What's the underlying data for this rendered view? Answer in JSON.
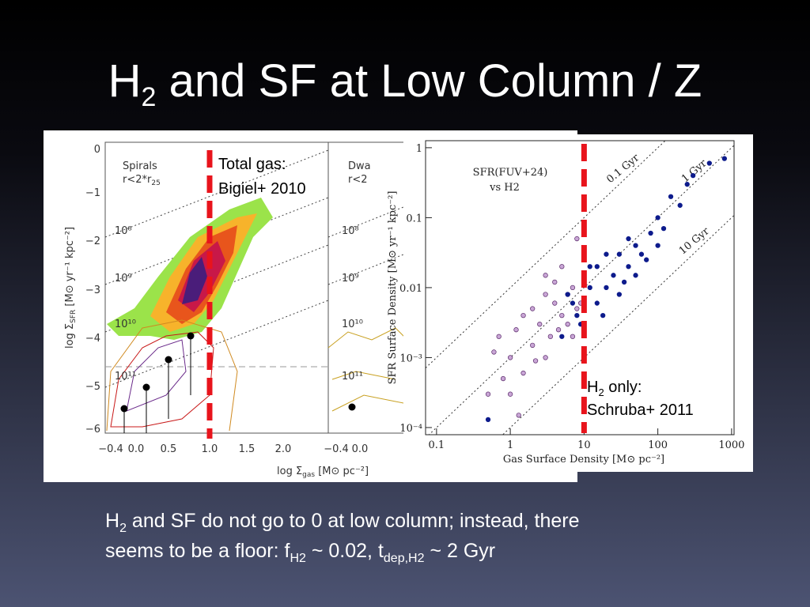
{
  "slide": {
    "title": {
      "base": "H",
      "sub": "2",
      "rest": " and SF at Low Column / Z"
    },
    "caption": {
      "line1": {
        "base": "H",
        "sub": "2",
        "rest": " and SF do not go to 0 at low column; instead, there"
      },
      "line2": {
        "a": "seems to be a floor: f",
        "sub1": "H2",
        "b": " ~ 0.02, t",
        "sub2": "dep,H2",
        "c": " ~ 2 Gyr"
      }
    }
  },
  "left_panel": {
    "panel1": {
      "name": "Spirals",
      "radius": "r<2*r",
      "radius_sub": "25"
    },
    "panel2": {
      "name": "Dwa",
      "radius": "r<2"
    },
    "yticks": [
      "0",
      "−1",
      "−2",
      "−3",
      "−4",
      "−5",
      "−6"
    ],
    "xticks": [
      "−0.4",
      "0.0",
      "0.5",
      "1.0",
      "1.5",
      "2.0"
    ],
    "xticks2": [
      "−0.4",
      "0.0"
    ],
    "contour_labels": [
      "10⁸",
      "10⁹",
      "10¹⁰",
      "10¹¹"
    ],
    "ylabel": {
      "a": "log Σ",
      "sub": "SFR",
      "b": " [M⊙ yr⁻¹ kpc⁻²]"
    },
    "xlabel": {
      "a": "log Σ",
      "sub": "gas",
      "b": " [M⊙ pc⁻²]"
    },
    "annotation": [
      "Total gas:",
      "Bigiel+ 2010"
    ]
  },
  "chart_data": {
    "type": "scatter",
    "log_x": true,
    "log_y": true,
    "xlabel": "Gas Surface Density [M⊙ pc⁻²]",
    "ylabel": "SFR Surface Density [M⊙ yr⁻¹ kpc⁻²]",
    "annotations": [
      "SFR(FUV+24)",
      "vs H2"
    ],
    "marker_x": 10,
    "marker_color": "#e8141c",
    "marker_labels": {
      "a": "H",
      "sub": "2",
      "b": " only:",
      "line2": "Schruba+ 2011"
    },
    "depletion_lines": [
      {
        "value": 0.1,
        "label": "0.1 Gyr"
      },
      {
        "value": 1,
        "label": "1 Gyr"
      },
      {
        "value": 10,
        "label": "10 Gyr"
      }
    ],
    "xlim": [
      0.071,
      1080
    ],
    "ylim": [
      7.9e-05,
      1.26
    ],
    "xticks": [
      0.1,
      1,
      10,
      100,
      1000
    ],
    "yticks": [
      1,
      0.1,
      0.01,
      {
        "value": 0.001,
        "label": "10⁻³"
      },
      {
        "value": 0.0001,
        "label": "10⁻⁴"
      }
    ],
    "series": [
      {
        "color": "#c9a6d6",
        "x": [
          0.5,
          0.7,
          0.8,
          1,
          1,
          1.2,
          1.5,
          1.5,
          2,
          2,
          2.5,
          3,
          3,
          3.5,
          4,
          4,
          5,
          5,
          6,
          6,
          7,
          8,
          8,
          9,
          0.6,
          1.3,
          2.2,
          4.5,
          3,
          7
        ],
        "values": [
          0.0003,
          0.002,
          0.0005,
          0.001,
          0.0003,
          0.0025,
          0.0006,
          0.004,
          0.0015,
          0.005,
          0.003,
          0.008,
          0.001,
          0.002,
          0.006,
          0.012,
          0.004,
          0.02,
          0.003,
          0.008,
          0.01,
          0.005,
          0.05,
          0.006,
          0.0012,
          0.00015,
          0.0009,
          0.0025,
          0.015,
          0.002
        ]
      },
      {
        "color": "#0d1b8c",
        "x": [
          0.5,
          5,
          6,
          8,
          10,
          10,
          12,
          15,
          15,
          20,
          20,
          25,
          30,
          30,
          40,
          40,
          50,
          50,
          60,
          70,
          80,
          100,
          100,
          120,
          150,
          200,
          250,
          300,
          500,
          800,
          12,
          18,
          35,
          9,
          7
        ],
        "values": [
          0.00013,
          0.002,
          0.008,
          0.004,
          0.005,
          0.015,
          0.01,
          0.006,
          0.02,
          0.01,
          0.03,
          0.015,
          0.008,
          0.03,
          0.02,
          0.05,
          0.015,
          0.04,
          0.03,
          0.025,
          0.06,
          0.04,
          0.1,
          0.07,
          0.2,
          0.15,
          0.3,
          0.4,
          0.6,
          0.7,
          0.02,
          0.004,
          0.012,
          0.003,
          0.006
        ]
      }
    ]
  }
}
